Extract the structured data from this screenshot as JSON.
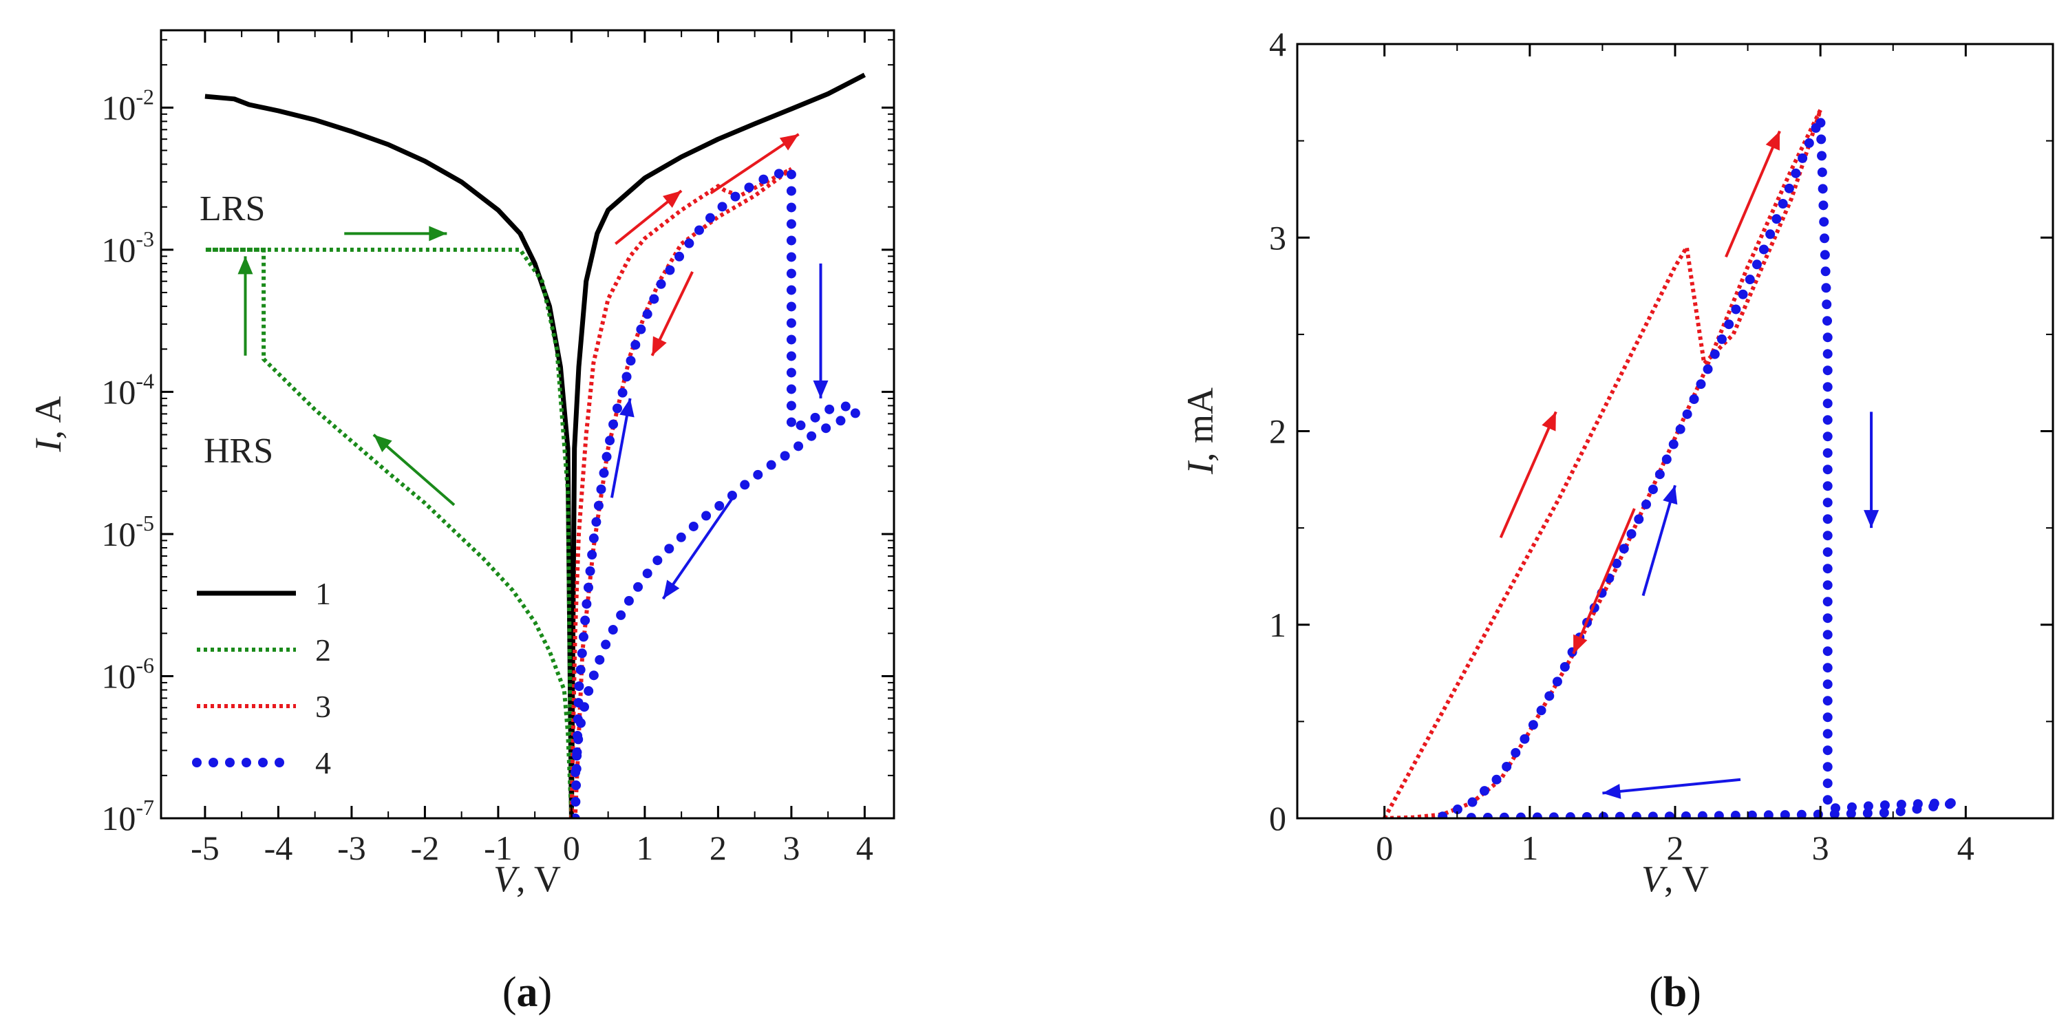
{
  "chart_data": [
    {
      "panel": "a",
      "caption": {
        "open": "(",
        "letter": "a",
        "close": ")"
      },
      "type": "line",
      "yscale": "log",
      "xlabel": {
        "var": "V",
        "unit": ", V"
      },
      "ylabel": {
        "var": "I",
        "unit": ", A"
      },
      "xlim": [
        -5.6,
        4.4
      ],
      "ylim": [
        1e-07,
        0.035
      ],
      "xticks": [
        -5,
        -4,
        -3,
        -2,
        -1,
        0,
        1,
        2,
        3,
        4
      ],
      "xtick_labels": [
        "-5",
        "-4",
        "-3",
        "-2",
        "-1",
        "0",
        "1",
        "2",
        "3",
        "4"
      ],
      "yticks": [
        1e-07,
        1e-06,
        1e-05,
        0.0001,
        0.001,
        0.01
      ],
      "ytick_labels": [
        {
          "base": "10",
          "exp": "-7"
        },
        {
          "base": "10",
          "exp": "-6"
        },
        {
          "base": "10",
          "exp": "-5"
        },
        {
          "base": "10",
          "exp": "-4"
        },
        {
          "base": "10",
          "exp": "-3"
        },
        {
          "base": "10",
          "exp": "-2"
        }
      ],
      "annotations": [
        {
          "text": "LRS",
          "x": -4.8,
          "y": 0.0017
        },
        {
          "text": "HRS",
          "x": -4.7,
          "y": 5.5e-05
        }
      ],
      "legend": {
        "position": "bottom-left",
        "entries": [
          {
            "label": "1",
            "color": "#000000",
            "style": "solid"
          },
          {
            "label": "2",
            "color": "#1a8a1a",
            "style": "dotted"
          },
          {
            "label": "3",
            "color": "#e8191e",
            "style": "dotted"
          },
          {
            "label": "4",
            "color": "#1515e6",
            "style": "dots"
          }
        ]
      },
      "series": [
        {
          "name": "1",
          "color": "#000000",
          "style": "solid",
          "points": [
            [
              -5,
              0.012
            ],
            [
              -4.6,
              0.0115
            ],
            [
              -4.4,
              0.0105
            ],
            [
              -4,
              0.0095
            ],
            [
              -3.5,
              0.0082
            ],
            [
              -3,
              0.0068
            ],
            [
              -2.5,
              0.0055
            ],
            [
              -2,
              0.0042
            ],
            [
              -1.5,
              0.003
            ],
            [
              -1,
              0.0019
            ],
            [
              -0.7,
              0.0013
            ],
            [
              -0.5,
              0.0008
            ],
            [
              -0.3,
              0.0004
            ],
            [
              -0.15,
              0.00015
            ],
            [
              -0.05,
              4e-05
            ],
            [
              0,
              1e-07
            ],
            [
              0.04,
              4e-05
            ],
            [
              0.1,
              0.00015
            ],
            [
              0.2,
              0.0006
            ],
            [
              0.35,
              0.0013
            ],
            [
              0.5,
              0.0019
            ],
            [
              1,
              0.0032
            ],
            [
              1.5,
              0.0045
            ],
            [
              2,
              0.006
            ],
            [
              2.5,
              0.0077
            ],
            [
              3,
              0.0098
            ],
            [
              3.5,
              0.0125
            ],
            [
              4,
              0.017
            ]
          ]
        },
        {
          "name": "2",
          "color": "#1a8a1a",
          "style": "dotted",
          "points": [
            [
              0,
              1e-07
            ],
            [
              -0.05,
              4e-07
            ],
            [
              -0.1,
              8e-07
            ],
            [
              -0.3,
              1.5e-06
            ],
            [
              -0.5,
              2.4e-06
            ],
            [
              -0.8,
              4e-06
            ],
            [
              -1.2,
              6.7e-06
            ],
            [
              -1.6,
              1.05e-05
            ],
            [
              -2,
              1.65e-05
            ],
            [
              -2.5,
              2.7e-05
            ],
            [
              -3,
              4.5e-05
            ],
            [
              -3.5,
              7.5e-05
            ],
            [
              -4.2,
              0.00017
            ],
            [
              -4.2,
              0.001
            ],
            [
              -5,
              0.001
            ],
            [
              -0.7,
              0.001
            ],
            [
              -0.4,
              0.0006
            ],
            [
              -0.2,
              0.0002
            ],
            [
              -0.05,
              2e-05
            ],
            [
              0,
              1e-07
            ]
          ]
        },
        {
          "name": "3",
          "color": "#e8191e",
          "style": "dotted",
          "points": [
            [
              0,
              1e-07
            ],
            [
              0.05,
              2e-06
            ],
            [
              0.1,
              1e-05
            ],
            [
              0.2,
              5e-05
            ],
            [
              0.3,
              0.00016
            ],
            [
              0.5,
              0.00045
            ],
            [
              0.8,
              0.0009
            ],
            [
              1,
              0.0012
            ],
            [
              1.5,
              0.0019
            ],
            [
              2,
              0.0028
            ],
            [
              2.1,
              0.0026
            ],
            [
              2.3,
              0.0024
            ],
            [
              2.6,
              0.0029
            ],
            [
              3,
              0.0037
            ],
            [
              2.5,
              0.0024
            ],
            [
              2,
              0.0017
            ],
            [
              1.5,
              0.0011
            ],
            [
              1.2,
              0.0006
            ],
            [
              1,
              0.00035
            ],
            [
              0.8,
              0.00018
            ],
            [
              0.5,
              4e-05
            ],
            [
              0.3,
              8e-06
            ],
            [
              0.15,
              1.5e-06
            ],
            [
              0.05,
              1e-07
            ]
          ]
        },
        {
          "name": "4",
          "color": "#1515e6",
          "style": "dots",
          "points": [
            [
              0.05,
              1e-07
            ],
            [
              0.1,
              8e-07
            ],
            [
              0.2,
              3e-06
            ],
            [
              0.3,
              9e-06
            ],
            [
              0.4,
              2e-05
            ],
            [
              0.5,
              4e-05
            ],
            [
              0.6,
              7e-05
            ],
            [
              0.7,
              0.0001
            ],
            [
              0.8,
              0.00016
            ],
            [
              0.9,
              0.00024
            ],
            [
              1,
              0.00032
            ],
            [
              1.2,
              0.00055
            ],
            [
              1.4,
              0.0008
            ],
            [
              1.6,
              0.0011
            ],
            [
              1.8,
              0.0015
            ],
            [
              2,
              0.0019
            ],
            [
              2.2,
              0.0023
            ],
            [
              2.4,
              0.0027
            ],
            [
              2.6,
              0.0031
            ],
            [
              2.8,
              0.0034
            ],
            [
              3,
              0.0036
            ],
            [
              3,
              0.0018
            ],
            [
              3,
              0.0007
            ],
            [
              3,
              0.00025
            ],
            [
              3,
              0.0001
            ],
            [
              3,
              5.5e-05
            ],
            [
              3.2,
              6e-05
            ],
            [
              3.5,
              7.5e-05
            ],
            [
              3.8,
              8e-05
            ],
            [
              3.9,
              7.2e-05
            ],
            [
              3.6,
              6e-05
            ],
            [
              3.3,
              5e-05
            ],
            [
              3,
              3.8e-05
            ],
            [
              2.7,
              3e-05
            ],
            [
              2.4,
              2.3e-05
            ],
            [
              2.1,
              1.7e-05
            ],
            [
              1.8,
              1.3e-05
            ],
            [
              1.5,
              9.5e-06
            ],
            [
              1.2,
              6.8e-06
            ],
            [
              1,
              5e-06
            ],
            [
              0.8,
              3.5e-06
            ],
            [
              0.6,
              2.3e-06
            ],
            [
              0.45,
              1.6e-06
            ],
            [
              0.3,
              1e-06
            ],
            [
              0.2,
              7e-07
            ],
            [
              0.1,
              4e-07
            ],
            [
              0.05,
              2e-07
            ]
          ]
        }
      ],
      "arrows": [
        {
          "color": "#1a8a1a",
          "from": [
            -3.1,
            0.0013
          ],
          "to": [
            -1.7,
            0.0013
          ]
        },
        {
          "color": "#1a8a1a",
          "from": [
            -4.45,
            0.00018
          ],
          "to": [
            -4.45,
            0.0009
          ]
        },
        {
          "color": "#1a8a1a",
          "from": [
            -1.6,
            1.6e-05
          ],
          "to": [
            -2.7,
            5e-05
          ]
        },
        {
          "color": "#e8191e",
          "from": [
            0.6,
            0.0011
          ],
          "to": [
            1.5,
            0.0026
          ]
        },
        {
          "color": "#e8191e",
          "from": [
            1.9,
            0.0025
          ],
          "to": [
            3.1,
            0.0065
          ]
        },
        {
          "color": "#e8191e",
          "from": [
            1.65,
            0.0007
          ],
          "to": [
            1.1,
            0.00018
          ]
        },
        {
          "color": "#1515e6",
          "from": [
            0.55,
            1.8e-05
          ],
          "to": [
            0.8,
            9e-05
          ]
        },
        {
          "color": "#1515e6",
          "from": [
            3.4,
            0.0008
          ],
          "to": [
            3.4,
            9e-05
          ]
        },
        {
          "color": "#1515e6",
          "from": [
            2.2,
            1.8e-05
          ],
          "to": [
            1.25,
            3.5e-06
          ]
        }
      ]
    },
    {
      "panel": "b",
      "caption": {
        "open": "(",
        "letter": "b",
        "close": ")"
      },
      "type": "line",
      "xlabel": {
        "var": "V",
        "unit": ", V"
      },
      "ylabel": {
        "var": "I",
        "unit": ", mA"
      },
      "xlim": [
        -0.6,
        4.6
      ],
      "ylim": [
        0,
        4
      ],
      "xticks": [
        0,
        1,
        2,
        3,
        4
      ],
      "xtick_labels": [
        "0",
        "1",
        "2",
        "3",
        "4"
      ],
      "yticks": [
        0,
        1,
        2,
        3,
        4
      ],
      "ytick_labels": [
        "0",
        "1",
        "2",
        "3",
        "4"
      ],
      "series": [
        {
          "name": "3",
          "color": "#e8191e",
          "style": "dotted",
          "points": [
            [
              0,
              0
            ],
            [
              0.4,
              0.55
            ],
            [
              0.8,
              1.1
            ],
            [
              1.2,
              1.65
            ],
            [
              1.6,
              2.25
            ],
            [
              2.0,
              2.85
            ],
            [
              2.08,
              2.95
            ],
            [
              2.2,
              2.35
            ],
            [
              2.4,
              2.5
            ],
            [
              2.6,
              2.85
            ],
            [
              2.8,
              3.2
            ],
            [
              3.0,
              3.66
            ],
            [
              2.8,
              3.35
            ],
            [
              2.5,
              2.85
            ],
            [
              2.2,
              2.3
            ],
            [
              1.9,
              1.8
            ],
            [
              1.6,
              1.3
            ],
            [
              1.3,
              0.85
            ],
            [
              1.0,
              0.45
            ],
            [
              0.8,
              0.2
            ],
            [
              0.6,
              0.08
            ],
            [
              0.4,
              0.02
            ],
            [
              0.2,
              0.005
            ],
            [
              0,
              0
            ]
          ]
        },
        {
          "name": "4",
          "color": "#1515e6",
          "style": "dots",
          "points": [
            [
              0.4,
              0.01
            ],
            [
              0.6,
              0.08
            ],
            [
              0.8,
              0.22
            ],
            [
              1.0,
              0.45
            ],
            [
              1.2,
              0.72
            ],
            [
              1.4,
              1.02
            ],
            [
              1.6,
              1.32
            ],
            [
              1.8,
              1.62
            ],
            [
              2.0,
              1.95
            ],
            [
              2.2,
              2.28
            ],
            [
              2.4,
              2.6
            ],
            [
              2.6,
              2.92
            ],
            [
              2.8,
              3.28
            ],
            [
              3.0,
              3.62
            ],
            [
              3.05,
              2.5
            ],
            [
              3.05,
              1.5
            ],
            [
              3.05,
              0.5
            ],
            [
              3.05,
              0.05
            ],
            [
              3.5,
              0.07
            ],
            [
              3.95,
              0.08
            ],
            [
              3.5,
              0.03
            ],
            [
              3.0,
              0.02
            ],
            [
              2.5,
              0.015
            ],
            [
              2.0,
              0.01
            ],
            [
              1.5,
              0.008
            ],
            [
              1.0,
              0.005
            ],
            [
              0.5,
              0.003
            ]
          ]
        }
      ],
      "arrows": [
        {
          "color": "#e8191e",
          "from": [
            0.8,
            1.45
          ],
          "to": [
            1.18,
            2.1
          ]
        },
        {
          "color": "#e8191e",
          "from": [
            2.35,
            2.9
          ],
          "to": [
            2.72,
            3.55
          ]
        },
        {
          "color": "#e8191e",
          "from": [
            1.72,
            1.6
          ],
          "to": [
            1.3,
            0.85
          ]
        },
        {
          "color": "#1515e6",
          "from": [
            1.78,
            1.15
          ],
          "to": [
            2.0,
            1.72
          ]
        },
        {
          "color": "#1515e6",
          "from": [
            3.35,
            2.1
          ],
          "to": [
            3.35,
            1.5
          ]
        },
        {
          "color": "#1515e6",
          "from": [
            2.45,
            0.2
          ],
          "to": [
            1.5,
            0.13
          ]
        }
      ]
    }
  ]
}
